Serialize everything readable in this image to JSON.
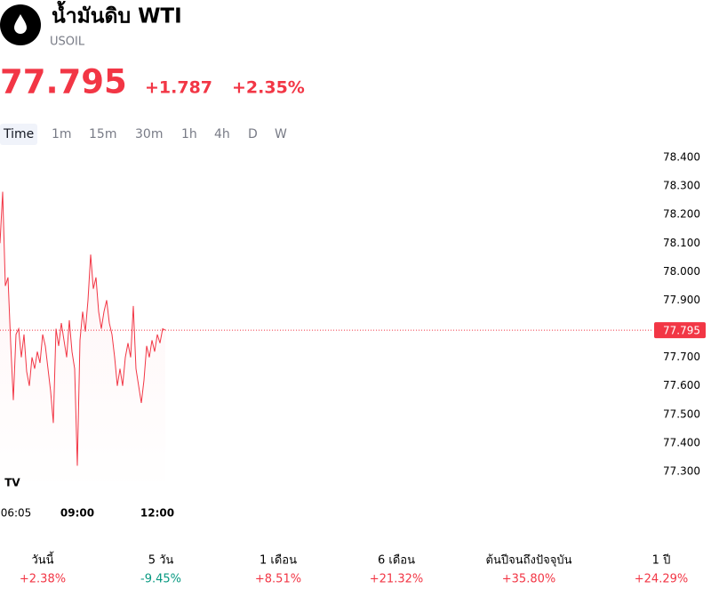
{
  "header": {
    "title": "น้ำมันดิบ WTI",
    "symbol": "USOIL"
  },
  "quote": {
    "price": "77.795",
    "change": "+1.787",
    "change_percent": "+2.35%",
    "color": "#f23645"
  },
  "intervals": [
    "Time",
    "1m",
    "15m",
    "30m",
    "1h",
    "4h",
    "D",
    "W"
  ],
  "chart_data": {
    "type": "line",
    "series": [
      {
        "color": "#f23645",
        "values": [
          78.1,
          78.28,
          77.95,
          77.98,
          77.75,
          77.55,
          77.78,
          77.8,
          77.7,
          77.78,
          77.65,
          77.6,
          77.7,
          77.66,
          77.72,
          77.68,
          77.78,
          77.74,
          77.66,
          77.58,
          77.47,
          77.8,
          77.74,
          77.82,
          77.76,
          77.7,
          77.83,
          77.72,
          77.66,
          77.32,
          77.76,
          77.86,
          77.79,
          77.9,
          78.06,
          77.94,
          77.98,
          77.86,
          77.8,
          77.86,
          77.9,
          77.82,
          77.78,
          77.7,
          77.6,
          77.66,
          77.6,
          77.7,
          77.75,
          77.7,
          77.88,
          77.66,
          77.6,
          77.54,
          77.62,
          77.74,
          77.7,
          77.76,
          77.72,
          77.78,
          77.75,
          77.8,
          77.795
        ]
      }
    ],
    "xlim": [
      0,
      245
    ],
    "xticks": [
      {
        "value": 6,
        "label": "06:05"
      },
      {
        "value": 29,
        "label": "09:00"
      },
      {
        "value": 59,
        "label": "12:00"
      }
    ],
    "ylim": [
      77.2,
      78.45
    ],
    "yticks": [
      {
        "value": 78.4,
        "label": "78.400"
      },
      {
        "value": 78.3,
        "label": "78.300"
      },
      {
        "value": 78.2,
        "label": "78.200"
      },
      {
        "value": 78.1,
        "label": "78.100"
      },
      {
        "value": 78.0,
        "label": "78.000"
      },
      {
        "value": 77.9,
        "label": "77.900"
      },
      {
        "value": 77.7,
        "label": "77.700"
      },
      {
        "value": 77.6,
        "label": "77.600"
      },
      {
        "value": 77.5,
        "label": "77.500"
      },
      {
        "value": 77.4,
        "label": "77.400"
      },
      {
        "value": 77.3,
        "label": "77.300"
      }
    ],
    "last_value": {
      "value": 77.795,
      "label": "77.795"
    }
  },
  "performance": [
    {
      "label": "วันนี้",
      "value": "+2.38%",
      "color": "#f23645"
    },
    {
      "label": "5 วัน",
      "value": "-9.45%",
      "color": "#089981"
    },
    {
      "label": "1 เดือน",
      "value": "+8.51%",
      "color": "#f23645"
    },
    {
      "label": "6 เดือน",
      "value": "+21.32%",
      "color": "#f23645"
    },
    {
      "label": "ต้นปีจนถึงปัจจุบัน",
      "value": "+35.80%",
      "color": "#f23645"
    },
    {
      "label": "1 ปี",
      "value": "+24.29%",
      "color": "#f23645"
    }
  ]
}
